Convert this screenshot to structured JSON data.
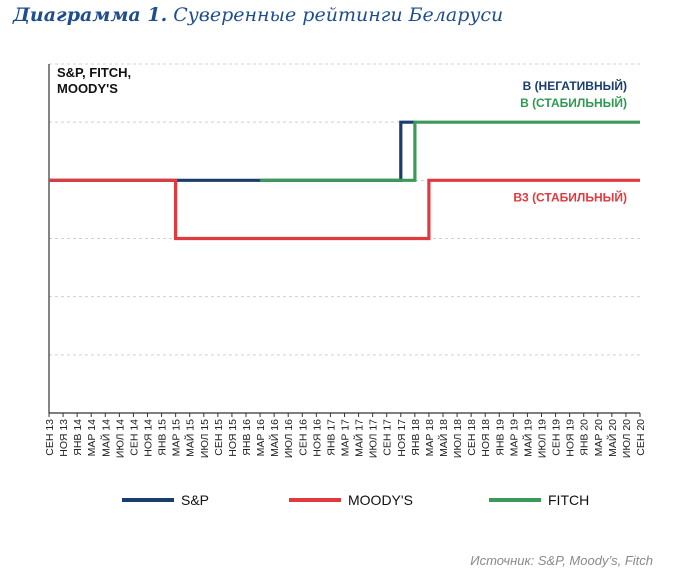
{
  "figure": {
    "title_bold": "Диаграмма 1.",
    "title_rest": "Суверенные рейтинги Беларуси",
    "source": "Источник: S&P, Moody’s, Fitch"
  },
  "chart_data": {
    "type": "line",
    "step": true,
    "ylabel": [
      "S&P, FITCH,",
      "MOODY'S"
    ],
    "x": [
      "СЕН 13",
      "НОЯ 13",
      "ЯНВ 14",
      "МАР 14",
      "МАЙ 14",
      "ИЮЛ 14",
      "СЕН 14",
      "НОЯ 14",
      "ЯНВ 15",
      "МАР 15",
      "МАЙ 15",
      "ИЮЛ 15",
      "СЕН 15",
      "НОЯ 15",
      "ЯНВ 16",
      "МАР 16",
      "МАЙ 16",
      "ИЮЛ 16",
      "СЕН 16",
      "НОЯ 16",
      "ЯНВ 17",
      "МАР 17",
      "МАЙ 17",
      "ИЮЛ 17",
      "СЕН 17",
      "НОЯ 17",
      "ЯНВ 18",
      "МАР 18",
      "МАЙ 18",
      "ИЮЛ 18",
      "СЕН 18",
      "НОЯ 18",
      "ЯНВ 19",
      "МАР 19",
      "МАЙ 19",
      "ИЮЛ 19",
      "СЕН 19",
      "НОЯ 19",
      "ЯНВ 20",
      "МАР 20",
      "МАЙ 20",
      "ИЮЛ 20",
      "СЕН 20"
    ],
    "y_levels": 6,
    "ylim": [
      1,
      7
    ],
    "grid": true,
    "series": [
      {
        "name": "S&P",
        "color": "#1a3d6e",
        "points": [
          [
            "СЕН 13",
            5
          ],
          [
            "НОЯ 17",
            5
          ],
          [
            "НОЯ 17",
            6
          ],
          [
            "ЯНВ 18",
            6
          ]
        ]
      },
      {
        "name": "MOODY'S",
        "color": "#e0393e",
        "points": [
          [
            "СЕН 13",
            5
          ],
          [
            "МАР 15",
            5
          ],
          [
            "МАР 15",
            4
          ],
          [
            "МАР 18",
            4
          ],
          [
            "МАР 18",
            5
          ],
          [
            "СЕН 20",
            5
          ]
        ]
      },
      {
        "name": "FITCH",
        "color": "#3a9a58",
        "points": [
          [
            "МАР 16",
            5
          ],
          [
            "ЯНВ 18",
            5
          ],
          [
            "ЯНВ 18",
            6
          ],
          [
            "СЕН 20",
            6
          ]
        ]
      }
    ],
    "annotations": [
      {
        "text": "B (НЕГАТИВНЫЙ)",
        "color": "#1a3d6e",
        "x": "СЕН 20",
        "y": 6,
        "pos": "above-1"
      },
      {
        "text": "B (СТАБИЛЬНЫЙ)",
        "color": "#2e9a50",
        "x": "СЕН 20",
        "y": 6,
        "pos": "above-0"
      },
      {
        "text": "B3 (СТАБИЛЬНЫЙ)",
        "color": "#e0393e",
        "x": "СЕН 20",
        "y": 5,
        "pos": "below"
      }
    ],
    "legend": [
      {
        "name": "S&P",
        "color": "#1a3d6e"
      },
      {
        "name": "MOODY'S",
        "color": "#e0393e"
      },
      {
        "name": "FITCH",
        "color": "#3a9a58"
      }
    ],
    "legend_position": "bottom"
  }
}
